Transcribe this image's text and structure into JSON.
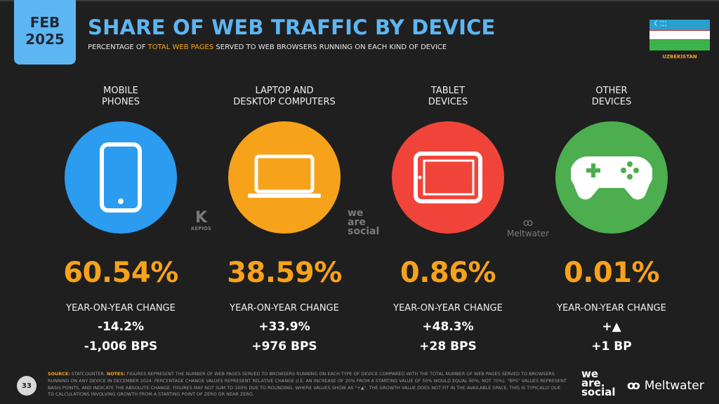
{
  "header": {
    "month": "FEB",
    "year": "2025",
    "title": "SHARE OF WEB TRAFFIC BY DEVICE",
    "subtitle_pre": "PERCENTAGE OF ",
    "subtitle_highlight": "TOTAL WEB PAGES",
    "subtitle_post": " SERVED TO WEB BROWSERS RUNNING ON EACH KIND OF DEVICE",
    "country": "UZBEKISTAN"
  },
  "colors": {
    "accent": "#f7a21b",
    "title": "#5db6f2",
    "mobile": "#2b9cef",
    "computer": "#f7a21b",
    "tablet": "#f0443a",
    "other": "#4cae4f"
  },
  "devices": [
    {
      "label1": "MOBILE",
      "label2": "PHONES",
      "icon": "mobile-phone-icon",
      "share": "60.54%",
      "yoy_label": "YEAR-ON-YEAR CHANGE",
      "change": "-14.2%",
      "bps": "-1,006 BPS"
    },
    {
      "label1": "LAPTOP AND",
      "label2": "DESKTOP COMPUTERS",
      "icon": "laptop-icon",
      "share": "38.59%",
      "yoy_label": "YEAR-ON-YEAR CHANGE",
      "change": "+33.9%",
      "bps": "+976 BPS"
    },
    {
      "label1": "TABLET",
      "label2": "DEVICES",
      "icon": "tablet-icon",
      "share": "0.86%",
      "yoy_label": "YEAR-ON-YEAR CHANGE",
      "change": "+48.3%",
      "bps": "+28 BPS"
    },
    {
      "label1": "OTHER",
      "label2": "DEVICES",
      "icon": "gamepad-icon",
      "share": "0.01%",
      "yoy_label": "YEAR-ON-YEAR CHANGE",
      "change": "+▲",
      "bps": "+1 BP"
    }
  ],
  "watermarks": {
    "kepios": "KEPIOS",
    "was1": "we",
    "was2": "are",
    "was3": "social",
    "meltwater": "Meltwater"
  },
  "footer": {
    "source_label": "SOURCE:",
    "source": " STATCOUNTER. ",
    "notes_label": "NOTES:",
    "notes": " FIGURES REPRESENT THE NUMBER OF WEB PAGES SERVED TO BROWSERS RUNNING ON EACH TYPE OF DEVICE COMPARED WITH THE TOTAL NUMBER OF WEB PAGES SERVED TO BROWSERS RUNNING ON ANY DEVICE IN DECEMBER 2024. PERCENTAGE CHANGE VALUES REPRESENT RELATIVE CHANGE (I.E. AN INCREASE OF 20% FROM A STARTING VALUE OF 50% WOULD EQUAL 60%, NOT 70%). \"BPS\" VALUES REPRESENT BASIS POINTS, AND INDICATE THE ABSOLUTE CHANGE. FIGURES MAY NOT SUM TO 100% DUE TO ROUNDING. WHERE VALUES SHOW AS \"+▲\", THE GROWTH VALUE DOES NOT FIT IN THE AVAILABLE SPACE. THIS IS TYPICALLY DUE TO CALCULATIONS INVOLVING GROWTH FROM A STARTING POINT OF ZERO OR NEAR ZERO.",
    "page": "33",
    "logo_was1": "we",
    "logo_was2": "are.",
    "logo_was3": "social",
    "logo_mw": "Meltwater"
  }
}
